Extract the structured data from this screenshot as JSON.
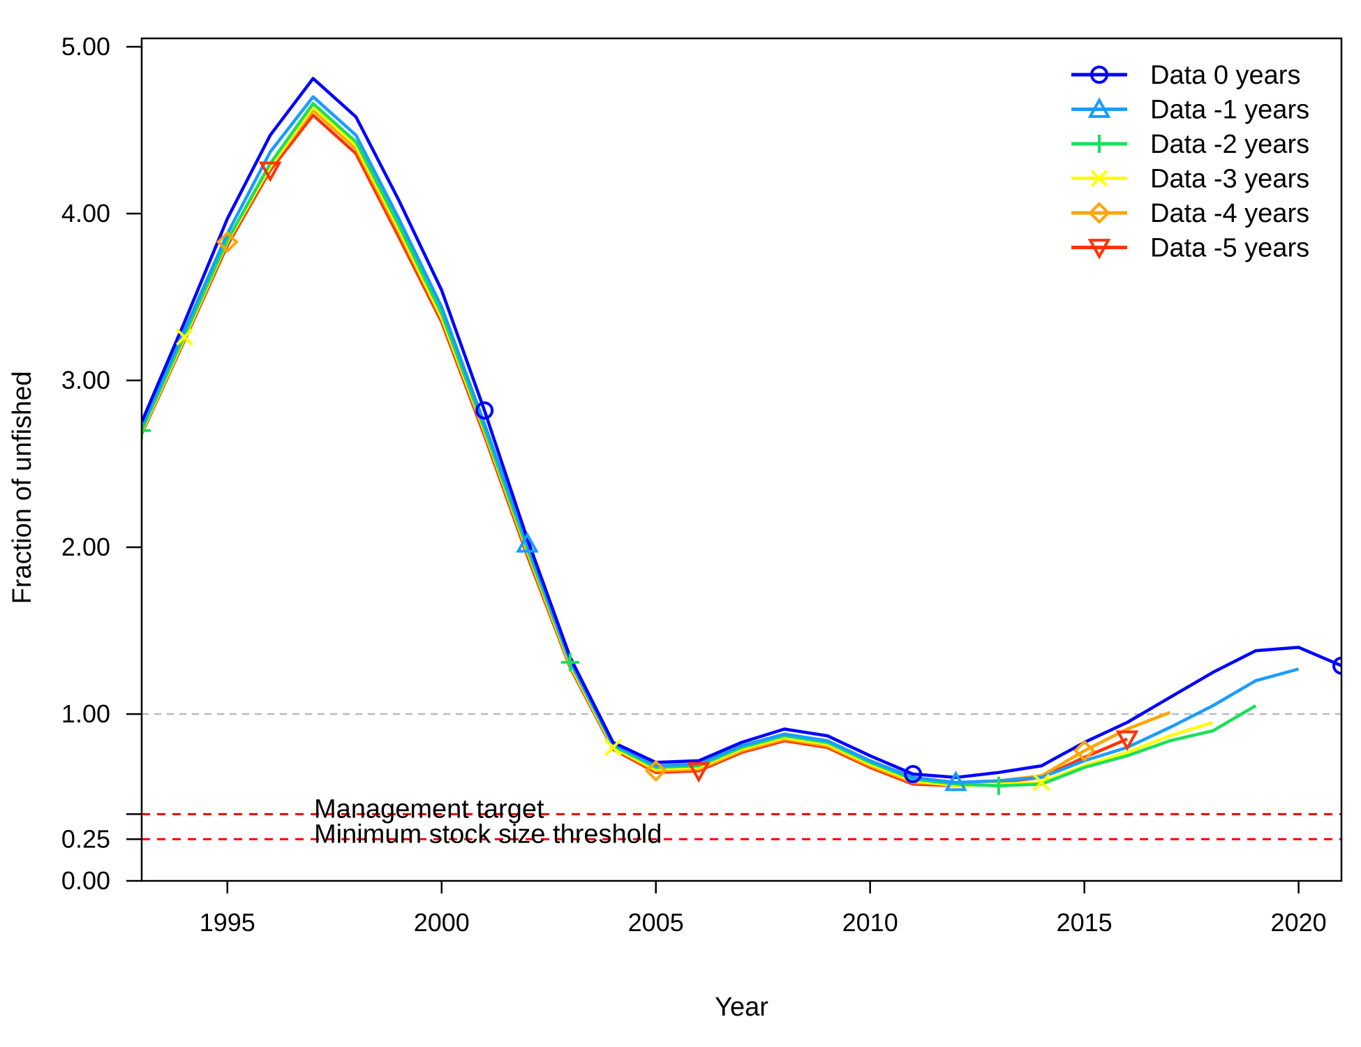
{
  "chart_data": {
    "type": "line",
    "title": "",
    "xlabel": "Year",
    "ylabel": "Fraction of unfished",
    "xlim": [
      1993,
      2021
    ],
    "ylim": [
      0,
      5
    ],
    "x_ticks": [
      1995,
      2000,
      2005,
      2010,
      2015,
      2020
    ],
    "y_ticks": [
      {
        "value": 0,
        "label": "0.00"
      },
      {
        "value": 0.25,
        "label": "0.25"
      },
      {
        "value": 1,
        "label": "1.00"
      },
      {
        "value": 2,
        "label": "2.00"
      },
      {
        "value": 3,
        "label": "3.00"
      },
      {
        "value": 4,
        "label": "4.00"
      },
      {
        "value": 5,
        "label": "5.00"
      }
    ],
    "y_scale_note": "piecewise: 0-1 spans one interval (0.25 at one quarter), above 1 each unit spans one interval",
    "legend_position": "top-right",
    "grid": false,
    "reference_lines": [
      {
        "y": 1.0,
        "label": "",
        "color": "#bbbbbb"
      },
      {
        "y": 0.4,
        "label": "Management target",
        "color": "#ff0000"
      },
      {
        "y": 0.25,
        "label": "Minimum stock size threshold",
        "color": "#ff0000"
      }
    ],
    "series": [
      {
        "name": "Data 0 years",
        "color": "#0000ff",
        "marker": "circle",
        "x": [
          1993,
          1994,
          1995,
          1996,
          1997,
          1998,
          1999,
          2000,
          2001,
          2002,
          2003,
          2004,
          2005,
          2006,
          2007,
          2008,
          2009,
          2010,
          2011,
          2012,
          2013,
          2014,
          2015,
          2016,
          2017,
          2018,
          2019,
          2020,
          2021
        ],
        "y": [
          2.75,
          3.35,
          3.97,
          4.47,
          4.81,
          4.58,
          4.08,
          3.54,
          2.82,
          2.05,
          1.34,
          0.83,
          0.71,
          0.72,
          0.83,
          0.91,
          0.87,
          0.75,
          0.64,
          0.62,
          0.65,
          0.69,
          0.83,
          0.95,
          1.1,
          1.25,
          1.38,
          1.4,
          1.29
        ],
        "marker_x": [
          2001,
          2011,
          2021
        ]
      },
      {
        "name": "Data -1 years",
        "color": "#1a9cff",
        "marker": "triangle",
        "x": [
          1993,
          1994,
          1995,
          1996,
          1997,
          1998,
          1999,
          2000,
          2001,
          2002,
          2003,
          2004,
          2005,
          2006,
          2007,
          2008,
          2009,
          2010,
          2011,
          2012,
          2013,
          2014,
          2015,
          2016,
          2017,
          2018,
          2019,
          2020
        ],
        "y": [
          2.72,
          3.3,
          3.88,
          4.37,
          4.7,
          4.47,
          3.97,
          3.44,
          2.74,
          2.02,
          1.32,
          0.82,
          0.69,
          0.7,
          0.81,
          0.88,
          0.84,
          0.72,
          0.62,
          0.59,
          0.6,
          0.62,
          0.72,
          0.8,
          0.92,
          1.05,
          1.2,
          1.27
        ],
        "marker_x": [
          2002,
          2012
        ]
      },
      {
        "name": "Data -2 years",
        "color": "#19e05a",
        "marker": "plus",
        "x": [
          1993,
          1994,
          1995,
          1996,
          1997,
          1998,
          1999,
          2000,
          2001,
          2002,
          2003,
          2004,
          2005,
          2006,
          2007,
          2008,
          2009,
          2010,
          2011,
          2012,
          2013,
          2014,
          2015,
          2016,
          2017,
          2018,
          2019
        ],
        "y": [
          2.7,
          3.27,
          3.84,
          4.3,
          4.66,
          4.43,
          3.93,
          3.4,
          2.71,
          1.99,
          1.31,
          0.81,
          0.68,
          0.69,
          0.8,
          0.87,
          0.83,
          0.71,
          0.61,
          0.58,
          0.57,
          0.58,
          0.68,
          0.75,
          0.84,
          0.9,
          1.05
        ],
        "marker_x": [
          1993,
          2003,
          2013
        ]
      },
      {
        "name": "Data -3 years",
        "color": "#ffff00",
        "marker": "x",
        "x": [
          1993,
          1994,
          1995,
          1996,
          1997,
          1998,
          1999,
          2000,
          2001,
          2002,
          2003,
          2004,
          2005,
          2006,
          2007,
          2008,
          2009,
          2010,
          2011,
          2012,
          2013,
          2014,
          2015,
          2016,
          2017,
          2018
        ],
        "y": [
          2.69,
          3.26,
          3.83,
          4.28,
          4.64,
          4.41,
          3.91,
          3.38,
          2.7,
          1.98,
          1.3,
          0.8,
          0.67,
          0.68,
          0.79,
          0.86,
          0.82,
          0.7,
          0.6,
          0.57,
          0.58,
          0.59,
          0.69,
          0.77,
          0.87,
          0.95
        ],
        "marker_x": [
          1994,
          2004,
          2014
        ]
      },
      {
        "name": "Data -4 years",
        "color": "#ffa500",
        "marker": "diamond",
        "x": [
          1993,
          1994,
          1995,
          1996,
          1997,
          1998,
          1999,
          2000,
          2001,
          2002,
          2003,
          2004,
          2005,
          2006,
          2007,
          2008,
          2009,
          2010,
          2011,
          2012,
          2013,
          2014,
          2015,
          2016,
          2017
        ],
        "y": [
          2.69,
          3.25,
          3.83,
          4.28,
          4.62,
          4.39,
          3.89,
          3.37,
          2.69,
          1.97,
          1.29,
          0.8,
          0.66,
          0.67,
          0.78,
          0.85,
          0.81,
          0.69,
          0.59,
          0.58,
          0.6,
          0.63,
          0.78,
          0.91,
          1.01
        ],
        "marker_x": [
          1995,
          2005,
          2015
        ]
      },
      {
        "name": "Data -5 years",
        "color": "#ff3300",
        "marker": "triangle-down",
        "x": [
          1993,
          1994,
          1995,
          1996,
          1997,
          1998,
          1999,
          2000,
          2001,
          2002,
          2003,
          2004,
          2005,
          2006,
          2007,
          2008,
          2009,
          2010,
          2011,
          2012,
          2013,
          2014,
          2015,
          2016
        ],
        "y": [
          2.68,
          3.24,
          3.81,
          4.26,
          4.59,
          4.36,
          3.86,
          3.35,
          2.67,
          1.95,
          1.28,
          0.79,
          0.65,
          0.66,
          0.77,
          0.84,
          0.8,
          0.68,
          0.58,
          0.57,
          0.59,
          0.62,
          0.74,
          0.85
        ],
        "marker_x": [
          1996,
          2006,
          2016
        ]
      }
    ]
  }
}
